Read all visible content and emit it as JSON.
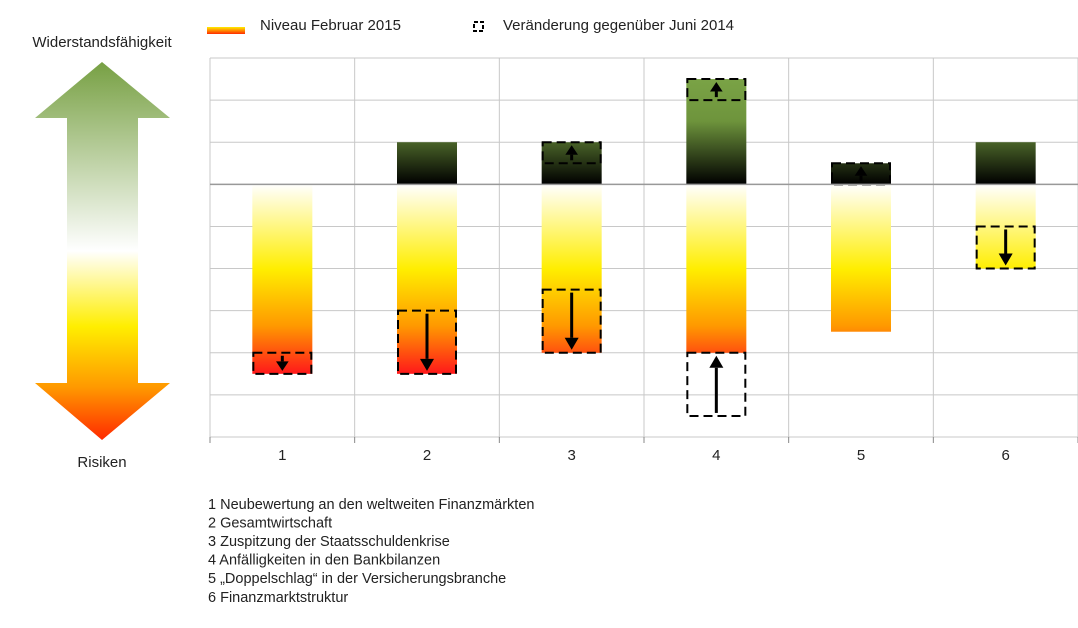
{
  "chart_data": {
    "type": "bar",
    "axis_top_label": "Widerstandsfähigkeit",
    "axis_bottom_label": "Risiken",
    "categories": [
      "1",
      "2",
      "3",
      "4",
      "5",
      "6"
    ],
    "series": [
      {
        "name": "Niveau Februar 2015",
        "values_up": [
          0,
          1,
          1,
          2.5,
          0.5,
          1
        ],
        "values_down": [
          -4.5,
          -4.5,
          -4,
          -4,
          -3.5,
          -2
        ]
      },
      {
        "name": "Veränderung gegenüber Juni 2014",
        "values_up": [
          null,
          null,
          0.5,
          0.5,
          0.5,
          null
        ],
        "values_down": [
          -0.5,
          -1.5,
          -1.5,
          1.5,
          null,
          -1
        ]
      }
    ],
    "ylim": [
      -6,
      3
    ],
    "yticks": [
      -6,
      -5,
      -4,
      -3,
      -2,
      -1,
      0,
      1,
      2,
      3
    ],
    "grid": true,
    "notes": [
      "1 Neubewertung an den weltweiten Finanzmärkten",
      "2 Gesamtwirtschaft",
      "3 Zuspitzung der Staatsschuldenkrise",
      "4 Anfälligkeiten in den Bankbilanzen",
      "5 „Doppelschlag“ in der Versicherungsbranche",
      "6 Finanzmarktstruktur"
    ]
  }
}
